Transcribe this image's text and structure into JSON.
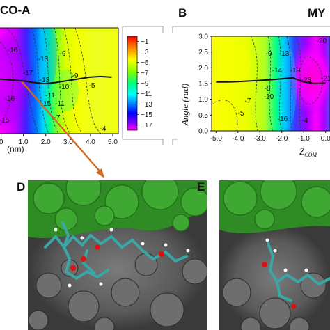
{
  "panels": {
    "a": {
      "title_fragment": "CO-A"
    },
    "b": {
      "letter": "B",
      "title_fragment": "MY"
    },
    "d": {
      "letter": "D"
    },
    "e": {
      "letter": "E"
    }
  },
  "chart_data": [
    {
      "type": "heatmap",
      "panel": "A",
      "title": "CO-A",
      "xlabel": "(nm)",
      "x_ticks": [
        "0",
        "1.0",
        "2.0",
        "3.0",
        "4.0",
        "5.0"
      ],
      "contour_labels": [
        "-17",
        "-16",
        "-15",
        "-13",
        "-11",
        "-10",
        "-9",
        "-7",
        "-5",
        "-13",
        "-16",
        "-15",
        "-11",
        "-9",
        "-4"
      ],
      "colorbar": {
        "ticks": [
          "-1",
          "-3",
          "-5",
          "-7",
          "-9",
          "-11",
          "-13",
          "-15",
          "-17"
        ],
        "range": [
          -18,
          0
        ],
        "colors": [
          "#ff0000",
          "#ff8000",
          "#ffff00",
          "#80ff00",
          "#00ff80",
          "#00ffff",
          "#0080ff",
          "#0000ff",
          "#8000ff",
          "#ff00ff"
        ]
      },
      "mean_angle_curve": {
        "x": [
          0,
          0.5,
          1.0,
          1.5,
          2.0,
          2.5,
          3.0,
          3.5,
          4.0,
          4.5,
          5.0
        ],
        "y": [
          1.55,
          1.52,
          1.5,
          1.45,
          1.42,
          1.45,
          1.5,
          1.55,
          1.6,
          1.62,
          1.6
        ]
      }
    },
    {
      "type": "heatmap",
      "panel": "B",
      "ylabel": "Angle (rad)",
      "xlabel": "ZCOM",
      "y_ticks": [
        "0.0",
        "0.5",
        "1.0",
        "1.5",
        "2.0",
        "2.5",
        "3.0"
      ],
      "x_ticks": [
        "-5.0",
        "-4.0",
        "-3.0",
        "-2.0",
        "-1.0",
        "0.0"
      ],
      "ylim": [
        0,
        3.0
      ],
      "xlim": [
        -5.2,
        0.2
      ],
      "contour_labels": [
        "-20",
        "-13",
        "-9",
        "-14",
        "-19",
        "-23",
        "-21",
        "-8",
        "-10",
        "-7",
        "-5",
        "-16",
        "-4"
      ],
      "mean_angle_curve": {
        "x": [
          -5.0,
          -4.5,
          -4.0,
          -3.5,
          -3.0,
          -2.5,
          -2.0,
          -1.5,
          -1.0,
          -0.5,
          0.0
        ],
        "y": [
          1.55,
          1.55,
          1.56,
          1.58,
          1.6,
          1.62,
          1.65,
          1.68,
          1.55,
          1.5,
          1.52
        ]
      }
    }
  ]
}
